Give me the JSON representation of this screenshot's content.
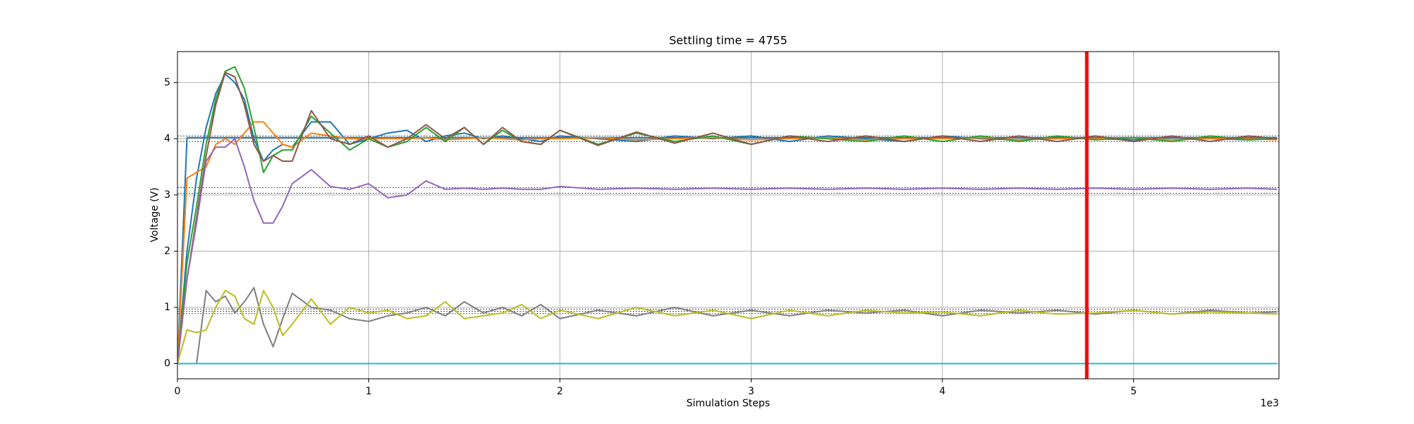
{
  "chart_data": {
    "type": "line",
    "title": "Settling time = 4755",
    "xlabel": "Simulation Steps",
    "ylabel": "Voltage (V)",
    "x_offset_label": "1e3",
    "x": [
      0,
      50,
      100,
      150,
      200,
      250,
      300,
      350,
      400,
      450,
      500,
      550,
      600,
      700,
      800,
      900,
      1000,
      1100,
      1200,
      1300,
      1400,
      1500,
      1600,
      1700,
      1800,
      1900,
      2000,
      2200,
      2400,
      2600,
      2800,
      3000,
      3200,
      3400,
      3600,
      3800,
      4000,
      4200,
      4400,
      4600,
      4800,
      5000,
      5200,
      5400,
      5600,
      5750
    ],
    "series": [
      {
        "color": "#1f77b4",
        "values": [
          0,
          4.02,
          4.02,
          4.02,
          4.02,
          4.02,
          4.02,
          4.02,
          4.02,
          4.02,
          4.02,
          4.02,
          4.02,
          4.02,
          4.02,
          4.02,
          4.02,
          4.02,
          4.02,
          4.02,
          4.02,
          4.02,
          4.02,
          4.02,
          4.02,
          4.02,
          4.02,
          4.02,
          4.02,
          4.02,
          4.02,
          4.02,
          4.02,
          4.02,
          4.02,
          4.02,
          4.02,
          4.02,
          4.02,
          4.02,
          4.02,
          4.02,
          4.02,
          4.02,
          4.02,
          4.02
        ]
      },
      {
        "color": "#1f77b4",
        "values": [
          0,
          2.0,
          3.3,
          4.2,
          4.8,
          5.15,
          5.0,
          4.7,
          4.0,
          3.6,
          3.8,
          3.9,
          3.85,
          4.3,
          4.3,
          3.9,
          4.0,
          4.1,
          4.15,
          3.95,
          4.05,
          4.1,
          4.0,
          4.05,
          4.0,
          3.95,
          4.05,
          4.0,
          3.95,
          4.05,
          4.0,
          4.05,
          3.95,
          4.05,
          4.0,
          3.95,
          4.05,
          4.0,
          3.98,
          4.03,
          4.0,
          3.98,
          4.02,
          4.0,
          3.98,
          4.0
        ]
      },
      {
        "color": "#ff7f0e",
        "values": [
          0,
          3.3,
          3.4,
          3.5,
          3.9,
          4.0,
          3.9,
          4.1,
          4.3,
          4.3,
          4.1,
          3.9,
          3.85,
          4.1,
          4.05,
          4.0,
          4.0,
          4.0,
          4.0,
          4.02,
          3.98,
          4.0,
          4.02,
          4.0,
          3.98,
          4.0,
          4.0,
          4.02,
          3.98,
          4.0,
          4.02,
          3.98,
          4.0,
          4.02,
          3.98,
          4.0,
          4.0,
          4.02,
          3.98,
          4.0,
          4.0,
          4.02,
          3.98,
          4.0,
          4.0,
          3.98
        ]
      },
      {
        "color": "#2ca02c",
        "values": [
          0,
          1.8,
          2.8,
          3.9,
          4.7,
          5.2,
          5.28,
          4.9,
          4.2,
          3.4,
          3.7,
          3.8,
          3.8,
          4.4,
          4.1,
          3.8,
          4.0,
          3.85,
          3.95,
          4.2,
          3.95,
          4.2,
          3.9,
          4.15,
          3.95,
          3.9,
          4.15,
          3.9,
          4.1,
          3.95,
          4.05,
          3.9,
          4.05,
          4.0,
          3.95,
          4.05,
          3.95,
          4.05,
          3.95,
          4.05,
          3.98,
          4.02,
          3.95,
          4.05,
          3.98,
          4.0
        ]
      },
      {
        "color": "#8c564b",
        "values": [
          0,
          1.5,
          2.6,
          3.7,
          4.6,
          5.18,
          5.1,
          4.6,
          3.9,
          3.6,
          3.7,
          3.6,
          3.6,
          4.5,
          4.0,
          3.9,
          4.05,
          3.85,
          4.0,
          4.25,
          4.0,
          4.2,
          3.9,
          4.2,
          3.95,
          3.9,
          4.15,
          3.88,
          4.12,
          3.92,
          4.1,
          3.9,
          4.05,
          3.95,
          4.05,
          3.95,
          4.05,
          3.95,
          4.05,
          3.95,
          4.05,
          3.95,
          4.05,
          3.95,
          4.05,
          4.0
        ]
      },
      {
        "color": "#9467bd",
        "values": [
          0,
          1.5,
          2.5,
          3.6,
          3.85,
          3.85,
          4.0,
          3.5,
          2.9,
          2.5,
          2.5,
          2.8,
          3.2,
          3.45,
          3.15,
          3.1,
          3.2,
          2.95,
          3.0,
          3.25,
          3.1,
          3.12,
          3.1,
          3.12,
          3.1,
          3.1,
          3.15,
          3.1,
          3.12,
          3.1,
          3.12,
          3.1,
          3.12,
          3.1,
          3.12,
          3.1,
          3.12,
          3.1,
          3.12,
          3.1,
          3.12,
          3.1,
          3.12,
          3.1,
          3.12,
          3.1
        ]
      },
      {
        "color": "#7f7f7f",
        "values": [
          0,
          0,
          0,
          1.3,
          1.1,
          1.2,
          0.9,
          1.1,
          1.35,
          0.7,
          0.3,
          0.8,
          1.25,
          1.0,
          0.95,
          0.8,
          0.75,
          0.85,
          0.9,
          1.0,
          0.85,
          1.1,
          0.9,
          1.0,
          0.85,
          1.05,
          0.8,
          0.95,
          0.85,
          1.0,
          0.85,
          0.95,
          0.85,
          0.95,
          0.9,
          0.95,
          0.85,
          0.95,
          0.9,
          0.95,
          0.88,
          0.95,
          0.88,
          0.95,
          0.9,
          0.92
        ]
      },
      {
        "color": "#bcbd22",
        "values": [
          0,
          0.6,
          0.55,
          0.6,
          1.0,
          1.3,
          1.2,
          0.8,
          0.7,
          1.3,
          1.0,
          0.5,
          0.7,
          1.15,
          0.7,
          1.0,
          0.9,
          0.95,
          0.8,
          0.85,
          1.1,
          0.8,
          0.85,
          0.9,
          1.05,
          0.8,
          0.95,
          0.8,
          1.0,
          0.85,
          0.95,
          0.8,
          0.95,
          0.85,
          0.95,
          0.9,
          0.92,
          0.85,
          0.95,
          0.88,
          0.9,
          0.95,
          0.88,
          0.92,
          0.9,
          0.88
        ]
      },
      {
        "color": "#17becf",
        "values": [
          0,
          0,
          0,
          0,
          0,
          0,
          0,
          0,
          0,
          0,
          0,
          0,
          0,
          0,
          0,
          0,
          0,
          0,
          0,
          0,
          0,
          0,
          0,
          0,
          0,
          0,
          0,
          0,
          0,
          0,
          0,
          0,
          0,
          0,
          0,
          0,
          0,
          0,
          0,
          0,
          0,
          0,
          0,
          0,
          0,
          0
        ]
      }
    ],
    "reference_lines": [
      4.05,
      3.95,
      3.13,
      3.03,
      0.97,
      0.93,
      0.89
    ],
    "reference_color": "#555555",
    "marker_line": {
      "value": 4755,
      "color": "#ff0000"
    },
    "xlim": [
      0,
      5760
    ],
    "ylim": [
      -0.27,
      5.55
    ],
    "xticks": [
      {
        "value": 0,
        "label": "0"
      },
      {
        "value": 1000,
        "label": "1"
      },
      {
        "value": 2000,
        "label": "2"
      },
      {
        "value": 3000,
        "label": "3"
      },
      {
        "value": 4000,
        "label": "4"
      },
      {
        "value": 5000,
        "label": "5"
      }
    ],
    "yticks": [
      0,
      1,
      2,
      3,
      4,
      5
    ],
    "grid": true
  }
}
